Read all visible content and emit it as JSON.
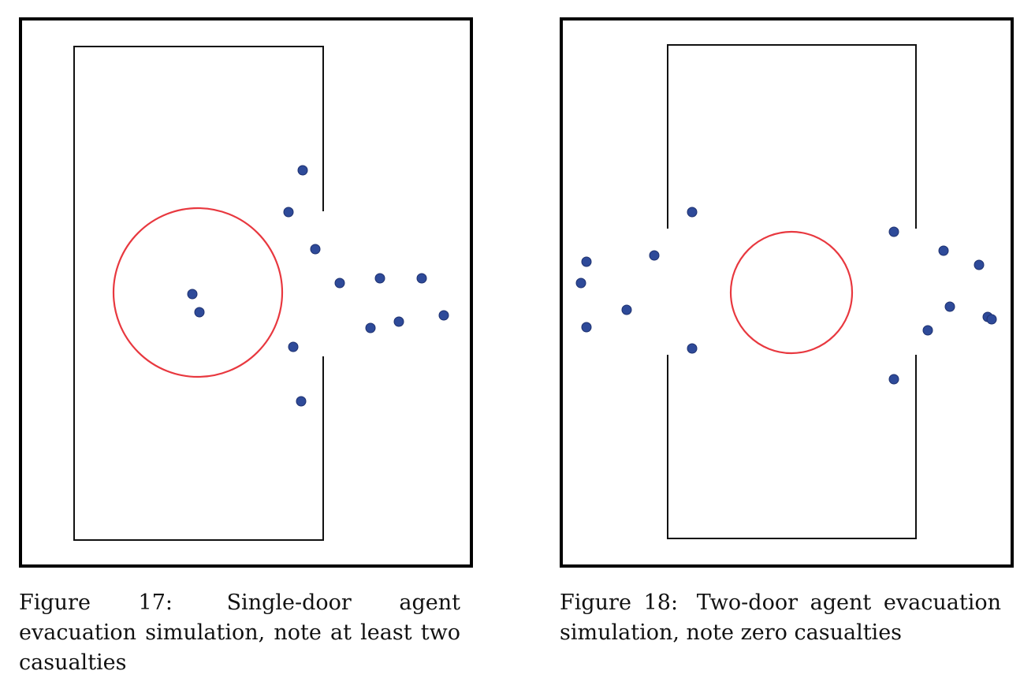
{
  "colors": {
    "frame": "#000000",
    "wall": "#111111",
    "threat_circle": "#e8383f",
    "agent_fill": "#2e4a99",
    "agent_stroke": "#1e3170"
  },
  "figures": [
    {
      "id": "figure-17",
      "label": "Figure 17:",
      "caption_text": "Single-door agent evacuation simulation, note at least two casualties",
      "casualties_noted": "at least two",
      "doors": 1
    },
    {
      "id": "figure-18",
      "label": "Figure 18:",
      "caption_text": "Two-door agent evacuation simulation, note zero casualties",
      "casualties_noted": "zero",
      "doors": 2
    }
  ]
}
